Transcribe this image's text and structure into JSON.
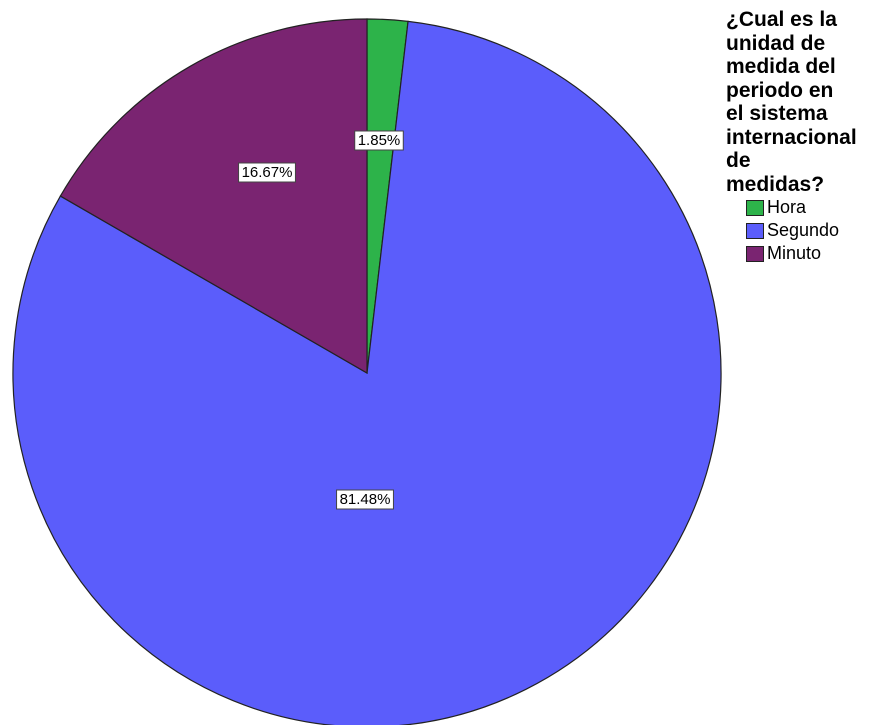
{
  "chart_data": {
    "type": "pie",
    "legend_title": "¿Cual es la\nunidad de\nmedida del\nperiodo en\nel sistema\ninternacional\nde\nmedidas?",
    "legend_position": "right",
    "slices": [
      {
        "label": "Hora",
        "value": 1.85,
        "display": "1.85%",
        "color": "#2db34a"
      },
      {
        "label": "Segundo",
        "value": 81.48,
        "display": "81.48%",
        "color": "#5b5dfb"
      },
      {
        "label": "Minuto",
        "value": 16.67,
        "display": "16.67%",
        "color": "#7a2471"
      }
    ]
  }
}
